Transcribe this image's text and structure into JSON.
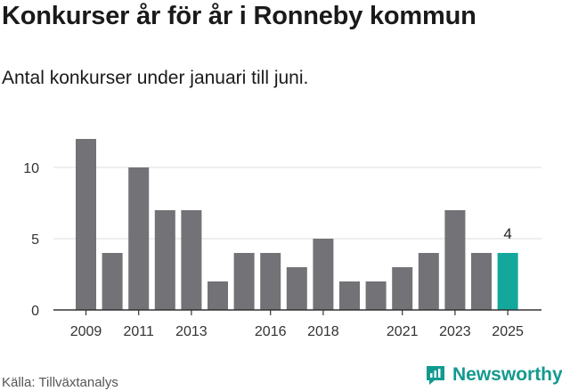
{
  "header": {
    "title": "Konkurser år för år i Ronneby kommun",
    "subtitle": "Antal konkurser under januari till juni."
  },
  "footer": {
    "source": "Källa: Tillväxtanalys",
    "brand": "Newsworthy"
  },
  "colors": {
    "bar": "#737277",
    "highlight": "#13a89b",
    "grid": "#dddddd",
    "axis": "#333333",
    "brand": "#139a8f"
  },
  "chart_data": {
    "type": "bar",
    "title": "Konkurser år för år i Ronneby kommun",
    "subtitle": "Antal konkurser under januari till juni.",
    "categories": [
      "2009",
      "2010",
      "2011",
      "2012",
      "2013",
      "2014",
      "2015",
      "2016",
      "2017",
      "2018",
      "2019",
      "2020",
      "2021",
      "2022",
      "2023",
      "2024",
      "2025"
    ],
    "values": [
      12,
      4,
      10,
      7,
      7,
      2,
      4,
      4,
      3,
      5,
      2,
      2,
      3,
      4,
      7,
      4,
      4
    ],
    "x_tick_labels": [
      "2009",
      "2011",
      "2013",
      "2016",
      "2018",
      "2021",
      "2023",
      "2025"
    ],
    "y_ticks": [
      0,
      5,
      10
    ],
    "ylim": [
      0,
      12
    ],
    "grid": true,
    "highlight_category": "2025",
    "data_labels": [
      {
        "category": "2025",
        "text": "4"
      }
    ],
    "xlabel": "",
    "ylabel": ""
  }
}
